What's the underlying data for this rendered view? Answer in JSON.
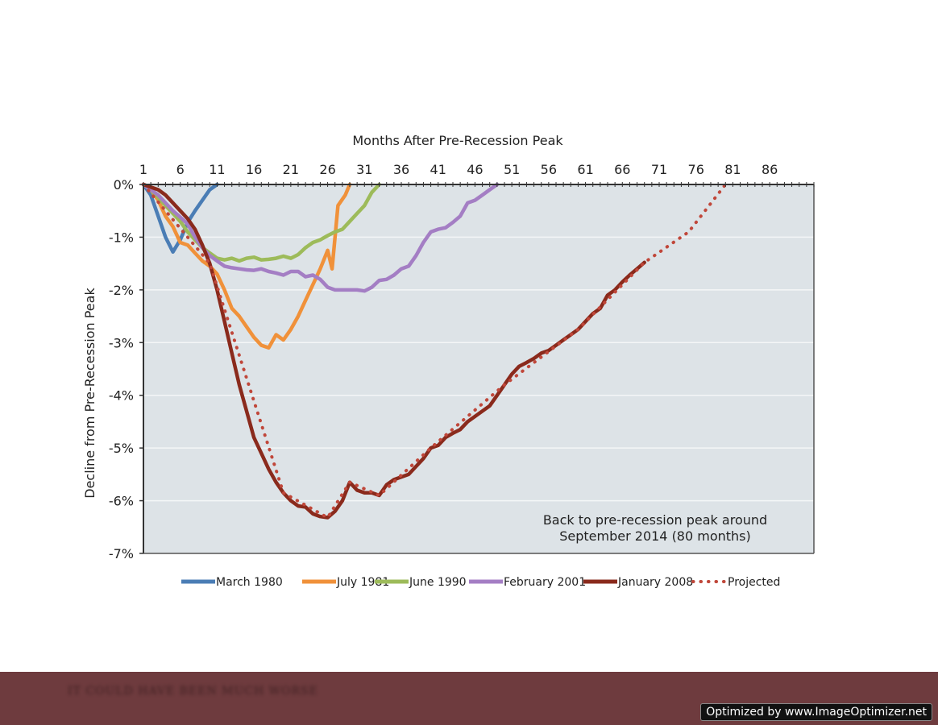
{
  "chart_data": {
    "type": "line",
    "title": "",
    "xlabel": "Months After Pre-Recession Peak",
    "ylabel": "Decline from Pre-Recession Peak",
    "x_ticks": [
      1,
      6,
      11,
      16,
      21,
      26,
      31,
      36,
      41,
      46,
      51,
      56,
      61,
      66,
      71,
      76,
      81,
      86
    ],
    "x_tick_labels": [
      "1",
      "6",
      "11",
      "16",
      "21",
      "26",
      "31",
      "36",
      "41",
      "46",
      "51",
      "56",
      "61",
      "66",
      "71",
      "76",
      "81",
      "86"
    ],
    "xlim": [
      1,
      92
    ],
    "y_ticks": [
      0,
      -1,
      -2,
      -3,
      -4,
      -5,
      -6,
      -7
    ],
    "y_tick_labels": [
      "0%",
      "-1%",
      "-2%",
      "-3%",
      "-4%",
      "-5%",
      "-6%",
      "-7%"
    ],
    "ylim": [
      -7,
      0
    ],
    "grid": "horizontal",
    "background_color": "#dde3e7",
    "legend_position": "bottom",
    "annotation": [
      "Back to pre-recession peak around",
      "September 2014 (80 months)"
    ],
    "series": [
      {
        "name": "March 1980",
        "color": "#4a7db5",
        "style": "solid",
        "points": [
          [
            1,
            0
          ],
          [
            2,
            -0.2
          ],
          [
            3,
            -0.6
          ],
          [
            4,
            -1.0
          ],
          [
            5,
            -1.28
          ],
          [
            6,
            -1.05
          ],
          [
            7,
            -0.72
          ],
          [
            8,
            -0.5
          ],
          [
            9,
            -0.3
          ],
          [
            10,
            -0.1
          ],
          [
            11,
            0
          ]
        ]
      },
      {
        "name": "July 1981",
        "color": "#f0913a",
        "style": "solid",
        "points": [
          [
            1,
            0
          ],
          [
            2,
            -0.1
          ],
          [
            3,
            -0.3
          ],
          [
            4,
            -0.6
          ],
          [
            5,
            -0.8
          ],
          [
            6,
            -1.1
          ],
          [
            7,
            -1.15
          ],
          [
            8,
            -1.3
          ],
          [
            9,
            -1.45
          ],
          [
            10,
            -1.55
          ],
          [
            11,
            -1.7
          ],
          [
            12,
            -2.0
          ],
          [
            13,
            -2.35
          ],
          [
            14,
            -2.5
          ],
          [
            15,
            -2.7
          ],
          [
            16,
            -2.9
          ],
          [
            17,
            -3.05
          ],
          [
            18,
            -3.1
          ],
          [
            19,
            -2.85
          ],
          [
            20,
            -2.95
          ],
          [
            21,
            -2.75
          ],
          [
            22,
            -2.5
          ],
          [
            23,
            -2.2
          ],
          [
            24,
            -1.9
          ],
          [
            25,
            -1.6
          ],
          [
            26,
            -1.25
          ],
          [
            26.6,
            -1.6
          ],
          [
            27.4,
            -0.4
          ],
          [
            28.4,
            -0.2
          ],
          [
            29,
            0
          ]
        ]
      },
      {
        "name": "June 1990",
        "color": "#9dbb5a",
        "style": "solid",
        "points": [
          [
            1,
            0
          ],
          [
            2,
            -0.1
          ],
          [
            3,
            -0.25
          ],
          [
            4,
            -0.4
          ],
          [
            5,
            -0.55
          ],
          [
            6,
            -0.7
          ],
          [
            7,
            -0.9
          ],
          [
            8,
            -1.05
          ],
          [
            9,
            -1.2
          ],
          [
            10,
            -1.3
          ],
          [
            11,
            -1.4
          ],
          [
            12,
            -1.43
          ],
          [
            13,
            -1.4
          ],
          [
            14,
            -1.45
          ],
          [
            15,
            -1.4
          ],
          [
            16,
            -1.38
          ],
          [
            17,
            -1.43
          ],
          [
            18,
            -1.42
          ],
          [
            19,
            -1.4
          ],
          [
            20,
            -1.36
          ],
          [
            21,
            -1.4
          ],
          [
            22,
            -1.33
          ],
          [
            23,
            -1.2
          ],
          [
            24,
            -1.1
          ],
          [
            25,
            -1.05
          ],
          [
            26,
            -0.97
          ],
          [
            27,
            -0.9
          ],
          [
            28,
            -0.85
          ],
          [
            29,
            -0.7
          ],
          [
            30,
            -0.55
          ],
          [
            31,
            -0.4
          ],
          [
            32,
            -0.15
          ],
          [
            33,
            0
          ]
        ]
      },
      {
        "name": "February 2001",
        "color": "#a47ec4",
        "style": "solid",
        "points": [
          [
            1,
            0
          ],
          [
            2,
            -0.1
          ],
          [
            3,
            -0.2
          ],
          [
            4,
            -0.35
          ],
          [
            5,
            -0.5
          ],
          [
            6,
            -0.62
          ],
          [
            7,
            -0.75
          ],
          [
            8,
            -1.0
          ],
          [
            9,
            -1.2
          ],
          [
            10,
            -1.35
          ],
          [
            11,
            -1.45
          ],
          [
            12,
            -1.55
          ],
          [
            13,
            -1.58
          ],
          [
            14,
            -1.6
          ],
          [
            15,
            -1.62
          ],
          [
            16,
            -1.63
          ],
          [
            17,
            -1.6
          ],
          [
            18,
            -1.65
          ],
          [
            19,
            -1.68
          ],
          [
            20,
            -1.72
          ],
          [
            21,
            -1.65
          ],
          [
            22,
            -1.65
          ],
          [
            23,
            -1.75
          ],
          [
            24,
            -1.72
          ],
          [
            25,
            -1.8
          ],
          [
            26,
            -1.95
          ],
          [
            27,
            -2.0
          ],
          [
            28,
            -2.0
          ],
          [
            29,
            -2.0
          ],
          [
            30,
            -2.0
          ],
          [
            31,
            -2.02
          ],
          [
            32,
            -1.95
          ],
          [
            33,
            -1.82
          ],
          [
            34,
            -1.8
          ],
          [
            35,
            -1.72
          ],
          [
            36,
            -1.6
          ],
          [
            37,
            -1.55
          ],
          [
            38,
            -1.35
          ],
          [
            39,
            -1.1
          ],
          [
            40,
            -0.9
          ],
          [
            41,
            -0.85
          ],
          [
            42,
            -0.82
          ],
          [
            43,
            -0.72
          ],
          [
            44,
            -0.6
          ],
          [
            45,
            -0.35
          ],
          [
            46,
            -0.3
          ],
          [
            47,
            -0.2
          ],
          [
            48,
            -0.1
          ],
          [
            49,
            0
          ]
        ]
      },
      {
        "name": "January 2008",
        "color": "#8a2a1c",
        "style": "solid",
        "points": [
          [
            1,
            0
          ],
          [
            2,
            -0.05
          ],
          [
            3,
            -0.1
          ],
          [
            4,
            -0.2
          ],
          [
            5,
            -0.35
          ],
          [
            6,
            -0.5
          ],
          [
            7,
            -0.65
          ],
          [
            8,
            -0.85
          ],
          [
            9,
            -1.15
          ],
          [
            10,
            -1.5
          ],
          [
            11,
            -2.0
          ],
          [
            12,
            -2.6
          ],
          [
            13,
            -3.2
          ],
          [
            14,
            -3.8
          ],
          [
            15,
            -4.3
          ],
          [
            16,
            -4.8
          ],
          [
            17,
            -5.1
          ],
          [
            18,
            -5.4
          ],
          [
            19,
            -5.65
          ],
          [
            20,
            -5.85
          ],
          [
            21,
            -6.0
          ],
          [
            22,
            -6.1
          ],
          [
            23,
            -6.12
          ],
          [
            24,
            -6.25
          ],
          [
            25,
            -6.3
          ],
          [
            26,
            -6.32
          ],
          [
            27,
            -6.2
          ],
          [
            28,
            -6.0
          ],
          [
            29,
            -5.65
          ],
          [
            30,
            -5.8
          ],
          [
            31,
            -5.85
          ],
          [
            32,
            -5.85
          ],
          [
            33,
            -5.9
          ],
          [
            34,
            -5.7
          ],
          [
            35,
            -5.6
          ],
          [
            36,
            -5.55
          ],
          [
            37,
            -5.5
          ],
          [
            38,
            -5.35
          ],
          [
            39,
            -5.2
          ],
          [
            40,
            -5.0
          ],
          [
            41,
            -4.95
          ],
          [
            42,
            -4.8
          ],
          [
            43,
            -4.72
          ],
          [
            44,
            -4.65
          ],
          [
            45,
            -4.5
          ],
          [
            46,
            -4.4
          ],
          [
            47,
            -4.3
          ],
          [
            48,
            -4.2
          ],
          [
            49,
            -4.0
          ],
          [
            50,
            -3.8
          ],
          [
            51,
            -3.6
          ],
          [
            52,
            -3.45
          ],
          [
            53,
            -3.38
          ],
          [
            54,
            -3.3
          ],
          [
            55,
            -3.2
          ],
          [
            56,
            -3.15
          ],
          [
            57,
            -3.05
          ],
          [
            58,
            -2.95
          ],
          [
            59,
            -2.85
          ],
          [
            60,
            -2.75
          ],
          [
            61,
            -2.6
          ],
          [
            62,
            -2.45
          ],
          [
            63,
            -2.35
          ],
          [
            64,
            -2.1
          ],
          [
            65,
            -2.0
          ],
          [
            66,
            -1.85
          ],
          [
            67,
            -1.72
          ],
          [
            68,
            -1.6
          ],
          [
            69,
            -1.48
          ]
        ]
      },
      {
        "name": "Projected",
        "color": "#c0473a",
        "style": "dotted",
        "points": [
          [
            1,
            0
          ],
          [
            10,
            -1.5
          ],
          [
            20,
            -5.85
          ],
          [
            26,
            -6.32
          ],
          [
            29,
            -5.65
          ],
          [
            33,
            -5.9
          ],
          [
            40,
            -5.0
          ],
          [
            50,
            -3.8
          ],
          [
            60,
            -2.75
          ],
          [
            69,
            -1.48
          ],
          [
            75,
            -0.9
          ],
          [
            80,
            0
          ]
        ]
      }
    ]
  },
  "footer": {
    "band_color": "#6e3b3e",
    "caption": "It could have been much worse",
    "watermark": "Optimized by www.ImageOptimizer.net"
  }
}
